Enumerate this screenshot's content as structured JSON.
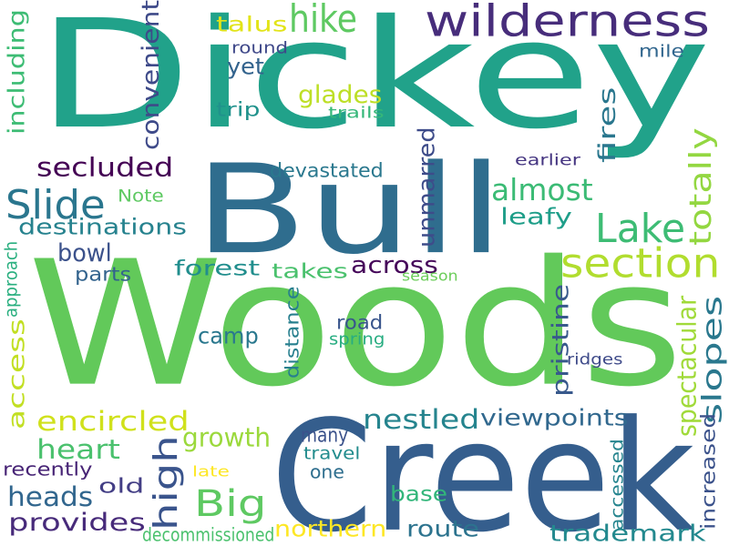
{
  "word_cloud": {
    "background": "#ffffff",
    "words": [
      {
        "text": "Dickey",
        "color": "#21a28a"
      },
      {
        "text": "Woods",
        "color": "#62c95a"
      },
      {
        "text": "Creek",
        "color": "#355e8d"
      },
      {
        "text": "Bull",
        "color": "#2f6d8e"
      },
      {
        "text": "wilderness",
        "color": "#472d7b"
      },
      {
        "text": "section",
        "color": "#b1dd2f"
      },
      {
        "text": "Lake",
        "color": "#3dbc74"
      },
      {
        "text": "hike",
        "color": "#5ec962"
      },
      {
        "text": "Slide",
        "color": "#2a768e"
      },
      {
        "text": "Big",
        "color": "#5ec962"
      },
      {
        "text": "high",
        "color": "#3a548c"
      },
      {
        "text": "totally",
        "color": "#93d741"
      },
      {
        "text": "secluded",
        "color": "#440154"
      },
      {
        "text": "almost",
        "color": "#3bbb75"
      },
      {
        "text": "nestled",
        "color": "#25848e"
      },
      {
        "text": "encircled",
        "color": "#d0e11c"
      },
      {
        "text": "heart",
        "color": "#4ac16d"
      },
      {
        "text": "provides",
        "color": "#472a7a"
      },
      {
        "text": "heads",
        "color": "#31668e"
      },
      {
        "text": "access",
        "color": "#c2df23"
      },
      {
        "text": "spectacular",
        "color": "#a0da39"
      },
      {
        "text": "slopes",
        "color": "#2a788e"
      },
      {
        "text": "pristine",
        "color": "#38598c"
      },
      {
        "text": "viewpoints",
        "color": "#31688e"
      },
      {
        "text": "glades",
        "color": "#bddf26"
      },
      {
        "text": "convenient",
        "color": "#3e4a89"
      },
      {
        "text": "destinations",
        "color": "#26828e"
      },
      {
        "text": "including",
        "color": "#3dbc74"
      },
      {
        "text": "fires",
        "color": "#2a778e"
      },
      {
        "text": "across",
        "color": "#46075a"
      },
      {
        "text": "leafy",
        "color": "#1f9e89"
      },
      {
        "text": "unmarred",
        "color": "#3e4c8a"
      },
      {
        "text": "bowl",
        "color": "#3b518b"
      },
      {
        "text": "route",
        "color": "#2c738e"
      },
      {
        "text": "trademark",
        "color": "#23898e"
      },
      {
        "text": "northern",
        "color": "#fde725"
      },
      {
        "text": "growth",
        "color": "#9bd93c"
      },
      {
        "text": "base",
        "color": "#32b67a"
      },
      {
        "text": "many",
        "color": "#3b528b"
      },
      {
        "text": "old",
        "color": "#433e85"
      },
      {
        "text": "camp",
        "color": "#2a788e"
      },
      {
        "text": "forest",
        "color": "#218e8d"
      },
      {
        "text": "takes",
        "color": "#4ac16d"
      },
      {
        "text": "yet",
        "color": "#33638d"
      },
      {
        "text": "talus",
        "color": "#e2e418"
      },
      {
        "text": "round",
        "color": "#3f4889"
      },
      {
        "text": "trip",
        "color": "#20928c"
      },
      {
        "text": "mile",
        "color": "#31668e"
      },
      {
        "text": "trails",
        "color": "#35b779"
      },
      {
        "text": "earlier",
        "color": "#453581"
      },
      {
        "text": "devastated",
        "color": "#2a788e"
      },
      {
        "text": "Note",
        "color": "#5ec962"
      },
      {
        "text": "approach",
        "color": "#29af7f"
      },
      {
        "text": "parts",
        "color": "#33638d"
      },
      {
        "text": "season",
        "color": "#6ccd5a"
      },
      {
        "text": "distance",
        "color": "#277f8e"
      },
      {
        "text": "road",
        "color": "#39558c"
      },
      {
        "text": "spring",
        "color": "#27ad81"
      },
      {
        "text": "ridges",
        "color": "#3e4a89"
      },
      {
        "text": "increased",
        "color": "#3b528b"
      },
      {
        "text": "accessed",
        "color": "#25848e"
      },
      {
        "text": "travel",
        "color": "#228c8d"
      },
      {
        "text": "one",
        "color": "#2e6e8e"
      },
      {
        "text": "late",
        "color": "#fde725"
      },
      {
        "text": "recently",
        "color": "#482576"
      },
      {
        "text": "decommissioned",
        "color": "#4ac16d"
      }
    ]
  }
}
